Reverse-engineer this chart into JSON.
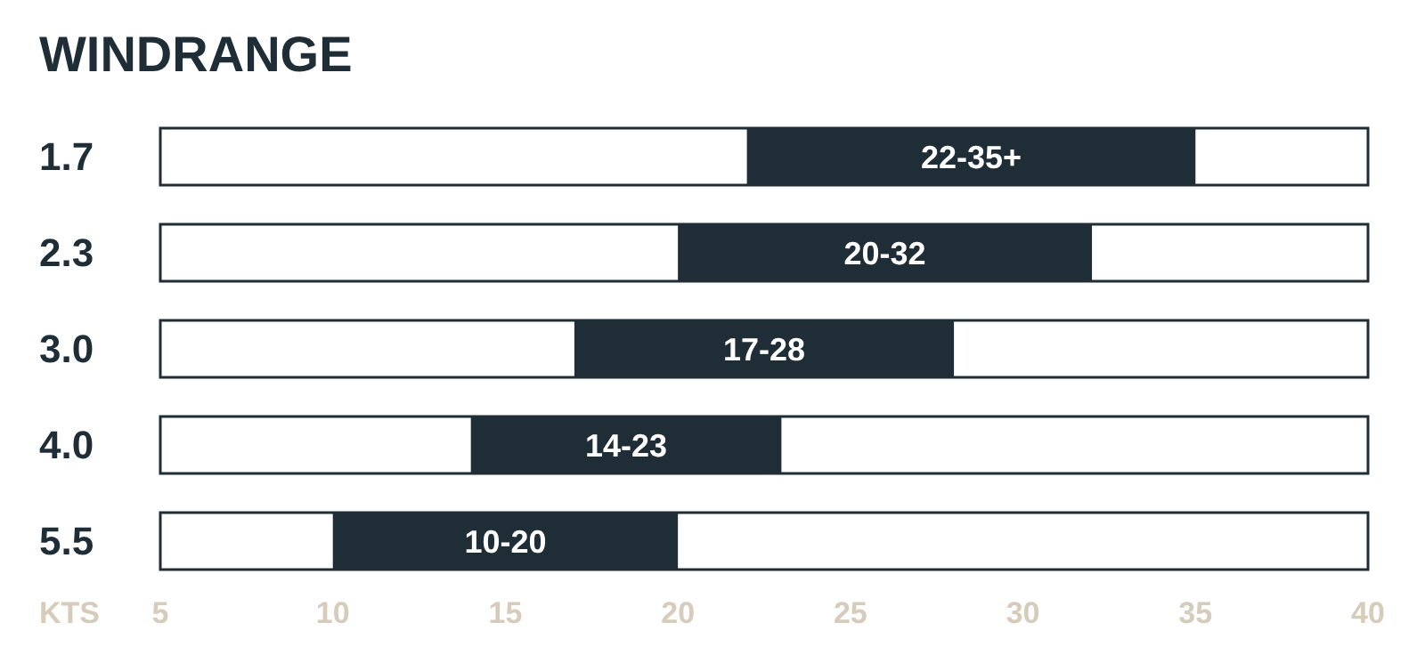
{
  "chart_data": {
    "type": "bar",
    "orientation": "horizontal",
    "title": "WINDRANGE",
    "xlabel": "KTS",
    "categories": [
      "1.7",
      "2.3",
      "3.0",
      "4.0",
      "5.5"
    ],
    "base": [
      22,
      20,
      17,
      14,
      10
    ],
    "values": [
      13,
      12,
      11,
      9,
      10
    ],
    "value_labels": [
      "22-35+",
      "20-32",
      "17-28",
      "14-23",
      "10-20"
    ],
    "color": "#1e2d36",
    "xlim": [
      5,
      40
    ],
    "xticks": [
      5,
      10,
      15,
      20,
      25,
      30,
      35,
      40
    ],
    "grid": false
  }
}
